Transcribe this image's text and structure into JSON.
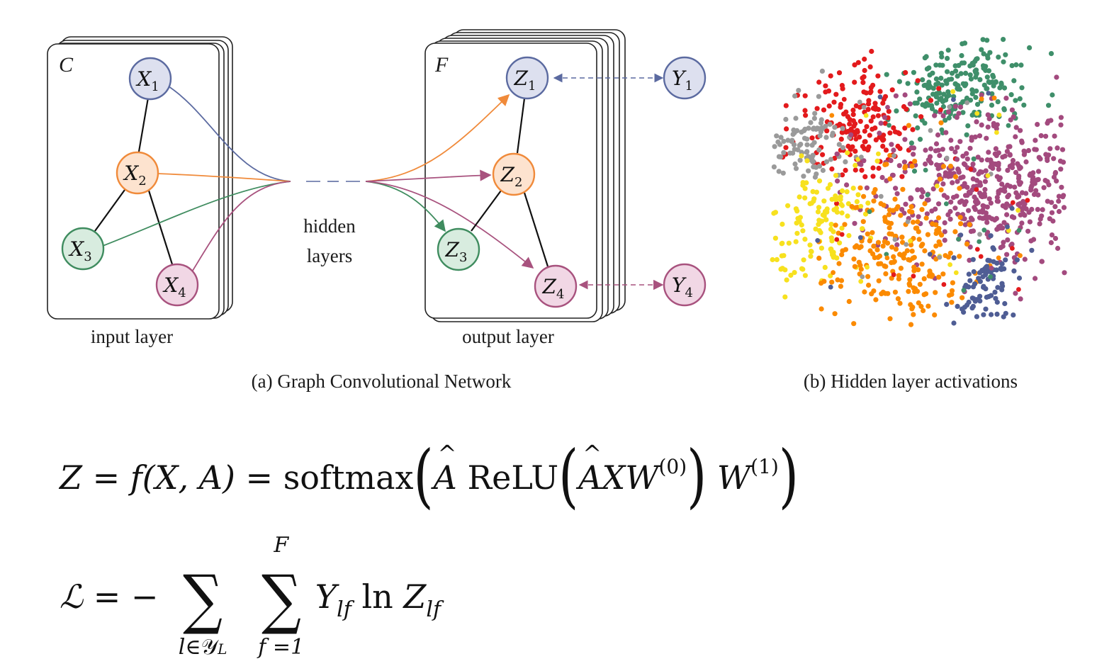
{
  "panel_a": {
    "input_block_label": "C",
    "output_block_label": "F",
    "input_nodes": [
      {
        "base": "X",
        "sub": "1",
        "color": "#5b6aa0",
        "fill": "#dde0ef"
      },
      {
        "base": "X",
        "sub": "2",
        "color": "#f08a3a",
        "fill": "#fde3cf"
      },
      {
        "base": "X",
        "sub": "3",
        "color": "#3f8c5f",
        "fill": "#d8ecdf"
      },
      {
        "base": "X",
        "sub": "4",
        "color": "#a8527e",
        "fill": "#f1d7e5"
      }
    ],
    "output_nodes": [
      {
        "base": "Z",
        "sub": "1",
        "color": "#5b6aa0",
        "fill": "#dde0ef"
      },
      {
        "base": "Z",
        "sub": "2",
        "color": "#f08a3a",
        "fill": "#fde3cf"
      },
      {
        "base": "Z",
        "sub": "3",
        "color": "#3f8c5f",
        "fill": "#d8ecdf"
      },
      {
        "base": "Z",
        "sub": "4",
        "color": "#a8527e",
        "fill": "#f1d7e5"
      }
    ],
    "label_nodes": [
      {
        "base": "Y",
        "sub": "1",
        "color": "#5b6aa0",
        "fill": "#dde0ef"
      },
      {
        "base": "Y",
        "sub": "4",
        "color": "#a8527e",
        "fill": "#f1d7e5"
      }
    ],
    "hidden_label_line1": "hidden",
    "hidden_label_line2": "layers",
    "input_layer_label": "input layer",
    "output_layer_label": "output layer",
    "caption": "(a) Graph Convolutional Network"
  },
  "panel_b": {
    "caption": "(b) Hidden layer activations",
    "cluster_colors": {
      "green": "#3f8f6a",
      "red": "#e31a1c",
      "gray": "#9a9a9a",
      "purple": "#a34a7e",
      "yellow": "#f7e11e",
      "orange": "#fb8a00",
      "blue": "#4f5d94"
    }
  },
  "equation1": {
    "lhs": "Z",
    "eq": "=",
    "f": "f",
    "args": "(X, A)",
    "eq2": "=",
    "softmax": "softmax",
    "A": "A",
    "relu": "ReLU",
    "X": "X",
    "W": "W",
    "w0": "(0)",
    "w1": "(1)"
  },
  "equation2": {
    "lhs": "ℒ",
    "eq": "= −",
    "sum1_bottom_var": "l",
    "sum1_bottom_rest": "∈𝒴",
    "sum1_bottom_sub": "L",
    "sum2_top": "F",
    "sum2_bottom": "f =1",
    "Y": "Y",
    "lf": "lf",
    "ln": "ln",
    "Z": "Z"
  }
}
